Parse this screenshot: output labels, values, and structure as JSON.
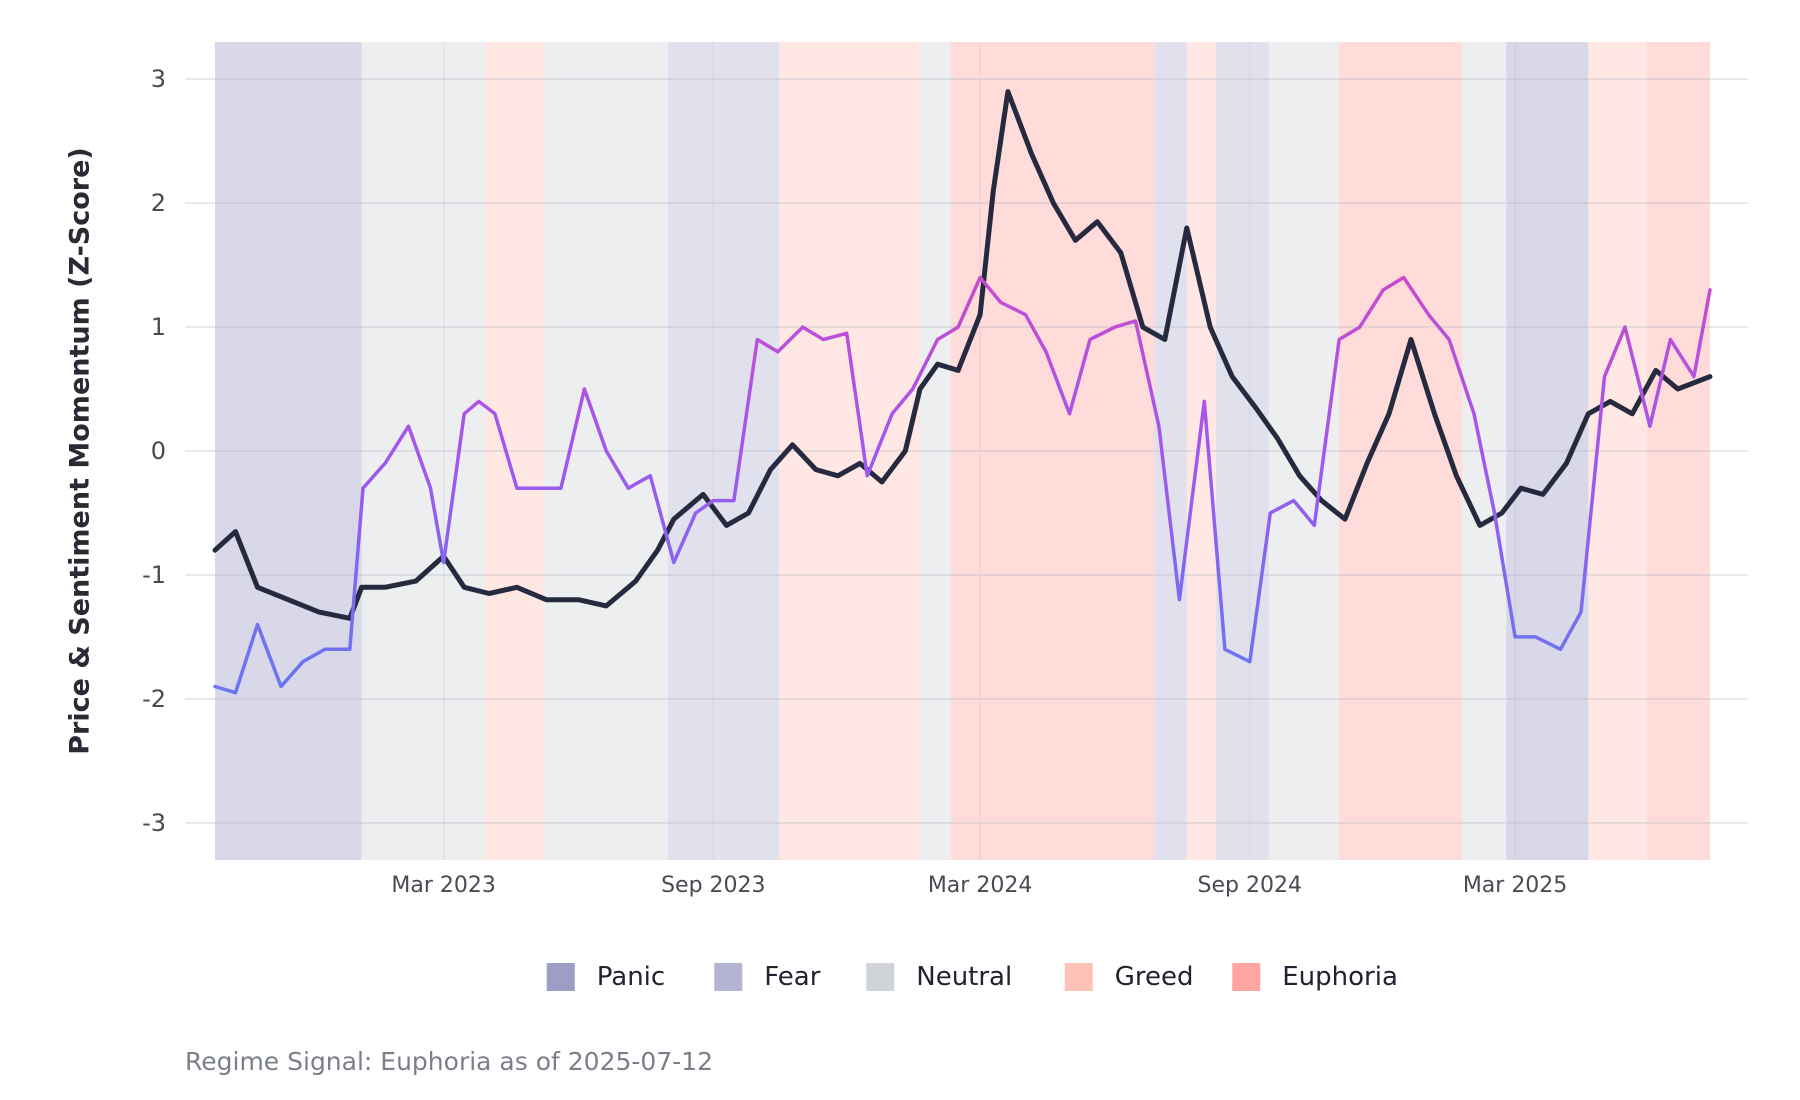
{
  "chart_data": {
    "type": "line",
    "title": "",
    "xlabel": "",
    "ylabel": "Price & Sentiment Momentum (Z-Score)",
    "ylim": [
      -3.3,
      3.3
    ],
    "xlim": [
      "2022-09-26",
      "2025-07-12"
    ],
    "y_ticks": [
      3,
      2,
      1,
      0,
      -1,
      -2,
      -3
    ],
    "y_tick_labels": [
      "3",
      "2",
      "1",
      "0",
      "-1",
      "-2",
      "-3"
    ],
    "x_ticks": [
      "2023-03-01",
      "2023-09-01",
      "2024-03-01",
      "2024-09-01",
      "2025-03-01"
    ],
    "x_tick_labels": [
      "Mar 2023",
      "Sep 2023",
      "Mar 2024",
      "Sep 2024",
      "Mar 2025"
    ],
    "grid": true,
    "legend_position": "bottom",
    "colors": {
      "Panic": "#9d9dc6",
      "Fear": "#b3b3d4",
      "Neutral": "#d0d4d8",
      "Greed": "#ffc2b8",
      "Euphoria": "#ffa6a2",
      "price_line": "#262a3e",
      "sentiment_low": "#3f8cf5",
      "sentiment_mid": "#a257ee",
      "sentiment_high": "#fb3c9e"
    },
    "legend": [
      {
        "label": "Panic",
        "color": "#9d9dc6"
      },
      {
        "label": "Fear",
        "color": "#b3b3d4"
      },
      {
        "label": "Neutral",
        "color": "#d0d4d8"
      },
      {
        "label": "Greed",
        "color": "#ffc2b8"
      },
      {
        "label": "Euphoria",
        "color": "#ffa6a2"
      }
    ],
    "regimes": [
      {
        "start": "2022-09-26",
        "end": "2023-01-04",
        "regime": "Panic"
      },
      {
        "start": "2023-01-04",
        "end": "2023-03-29",
        "regime": "Neutral"
      },
      {
        "start": "2023-03-29",
        "end": "2023-05-09",
        "regime": "Greed"
      },
      {
        "start": "2023-05-09",
        "end": "2023-06-30",
        "regime": "Neutral"
      },
      {
        "start": "2023-06-30",
        "end": "2023-08-01",
        "regime": "Neutral"
      },
      {
        "start": "2023-08-01",
        "end": "2023-10-16",
        "regime": "Fear"
      },
      {
        "start": "2023-10-16",
        "end": "2024-01-20",
        "regime": "Greed"
      },
      {
        "start": "2024-01-20",
        "end": "2024-02-10",
        "regime": "Neutral"
      },
      {
        "start": "2024-02-10",
        "end": "2024-06-28",
        "regime": "Euphoria"
      },
      {
        "start": "2024-06-28",
        "end": "2024-07-20",
        "regime": "Fear"
      },
      {
        "start": "2024-07-20",
        "end": "2024-08-09",
        "regime": "Greed"
      },
      {
        "start": "2024-08-09",
        "end": "2024-09-14",
        "regime": "Fear"
      },
      {
        "start": "2024-09-14",
        "end": "2024-11-01",
        "regime": "Neutral"
      },
      {
        "start": "2024-11-01",
        "end": "2025-01-24",
        "regime": "Euphoria"
      },
      {
        "start": "2025-01-24",
        "end": "2025-02-23",
        "regime": "Neutral"
      },
      {
        "start": "2025-02-23",
        "end": "2025-04-20",
        "regime": "Panic"
      },
      {
        "start": "2025-04-20",
        "end": "2025-05-30",
        "regime": "Greed"
      },
      {
        "start": "2025-05-30",
        "end": "2025-07-12",
        "regime": "Euphoria"
      }
    ],
    "series": [
      {
        "name": "Price",
        "x": [
          "2022-09-26",
          "2022-10-10",
          "2022-10-25",
          "2022-11-15",
          "2022-12-06",
          "2022-12-27",
          "2023-01-04",
          "2023-01-20",
          "2023-02-10",
          "2023-03-01",
          "2023-03-15",
          "2023-04-01",
          "2023-04-20",
          "2023-05-10",
          "2023-06-01",
          "2023-06-20",
          "2023-07-10",
          "2023-07-25",
          "2023-08-05",
          "2023-08-25",
          "2023-09-10",
          "2023-09-25",
          "2023-10-10",
          "2023-10-25",
          "2023-11-10",
          "2023-11-25",
          "2023-12-10",
          "2023-12-25",
          "2024-01-10",
          "2024-01-20",
          "2024-02-01",
          "2024-02-15",
          "2024-03-01",
          "2024-03-10",
          "2024-03-20",
          "2024-04-05",
          "2024-04-20",
          "2024-05-05",
          "2024-05-20",
          "2024-06-05",
          "2024-06-20",
          "2024-07-05",
          "2024-07-20",
          "2024-08-05",
          "2024-08-20",
          "2024-09-05",
          "2024-09-20",
          "2024-10-05",
          "2024-10-20",
          "2024-11-05",
          "2024-11-20",
          "2024-12-05",
          "2024-12-20",
          "2025-01-05",
          "2025-01-20",
          "2025-02-05",
          "2025-02-20",
          "2025-03-05",
          "2025-03-20",
          "2025-04-05",
          "2025-04-20",
          "2025-05-05",
          "2025-05-20",
          "2025-06-05",
          "2025-06-20",
          "2025-07-12"
        ],
        "y": [
          -0.8,
          -0.65,
          -1.1,
          -1.2,
          -1.3,
          -1.35,
          -1.1,
          -1.1,
          -1.05,
          -0.85,
          -1.1,
          -1.15,
          -1.1,
          -1.2,
          -1.2,
          -1.25,
          -1.05,
          -0.8,
          -0.55,
          -0.35,
          -0.6,
          -0.5,
          -0.15,
          0.05,
          -0.15,
          -0.2,
          -0.1,
          -0.25,
          0.0,
          0.5,
          0.7,
          0.65,
          1.1,
          2.1,
          2.9,
          2.4,
          2.0,
          1.7,
          1.85,
          1.6,
          1.0,
          0.9,
          1.8,
          1.0,
          0.6,
          0.35,
          0.1,
          -0.2,
          -0.4,
          -0.55,
          -0.1,
          0.3,
          0.9,
          0.3,
          -0.2,
          -0.6,
          -0.5,
          -0.3,
          -0.35,
          -0.1,
          0.3,
          0.4,
          0.3,
          0.65,
          0.5,
          0.6
        ]
      },
      {
        "name": "Sentiment",
        "x": [
          "2022-09-26",
          "2022-10-10",
          "2022-10-25",
          "2022-11-10",
          "2022-11-25",
          "2022-12-10",
          "2022-12-27",
          "2023-01-05",
          "2023-01-20",
          "2023-02-05",
          "2023-02-20",
          "2023-03-01",
          "2023-03-15",
          "2023-03-25",
          "2023-04-05",
          "2023-04-20",
          "2023-05-05",
          "2023-05-20",
          "2023-06-05",
          "2023-06-20",
          "2023-07-05",
          "2023-07-20",
          "2023-08-05",
          "2023-08-20",
          "2023-09-01",
          "2023-09-15",
          "2023-10-01",
          "2023-10-15",
          "2023-11-01",
          "2023-11-15",
          "2023-12-01",
          "2023-12-15",
          "2024-01-01",
          "2024-01-15",
          "2024-02-01",
          "2024-02-15",
          "2024-03-01",
          "2024-03-15",
          "2024-04-01",
          "2024-04-15",
          "2024-05-01",
          "2024-05-15",
          "2024-06-01",
          "2024-06-15",
          "2024-07-01",
          "2024-07-15",
          "2024-08-01",
          "2024-08-15",
          "2024-09-01",
          "2024-09-15",
          "2024-10-01",
          "2024-10-15",
          "2024-11-01",
          "2024-11-15",
          "2024-12-01",
          "2024-12-15",
          "2025-01-01",
          "2025-01-15",
          "2025-02-01",
          "2025-02-15",
          "2025-03-01",
          "2025-03-15",
          "2025-04-01",
          "2025-04-15",
          "2025-05-01",
          "2025-05-15",
          "2025-06-01",
          "2025-06-15",
          "2025-07-01",
          "2025-07-12"
        ],
        "y": [
          -1.9,
          -1.95,
          -1.4,
          -1.9,
          -1.7,
          -1.6,
          -1.6,
          -0.3,
          -0.1,
          0.2,
          -0.3,
          -0.9,
          0.3,
          0.4,
          0.3,
          -0.3,
          -0.3,
          -0.3,
          0.5,
          0.0,
          -0.3,
          -0.2,
          -0.9,
          -0.5,
          -0.4,
          -0.4,
          0.9,
          0.8,
          1.0,
          0.9,
          0.95,
          -0.2,
          0.3,
          0.5,
          0.9,
          1.0,
          1.4,
          1.2,
          1.1,
          0.8,
          0.3,
          0.9,
          1.0,
          1.05,
          0.2,
          -1.2,
          0.4,
          -1.6,
          -1.7,
          -0.5,
          -0.4,
          -0.6,
          0.9,
          1.0,
          1.3,
          1.4,
          1.1,
          0.9,
          0.3,
          -0.5,
          -1.5,
          -1.5,
          -1.6,
          -1.3,
          0.6,
          1.0,
          0.2,
          0.9,
          0.6,
          1.3
        ]
      }
    ]
  },
  "caption": "Regime Signal: Euphoria as of 2025-07-12"
}
